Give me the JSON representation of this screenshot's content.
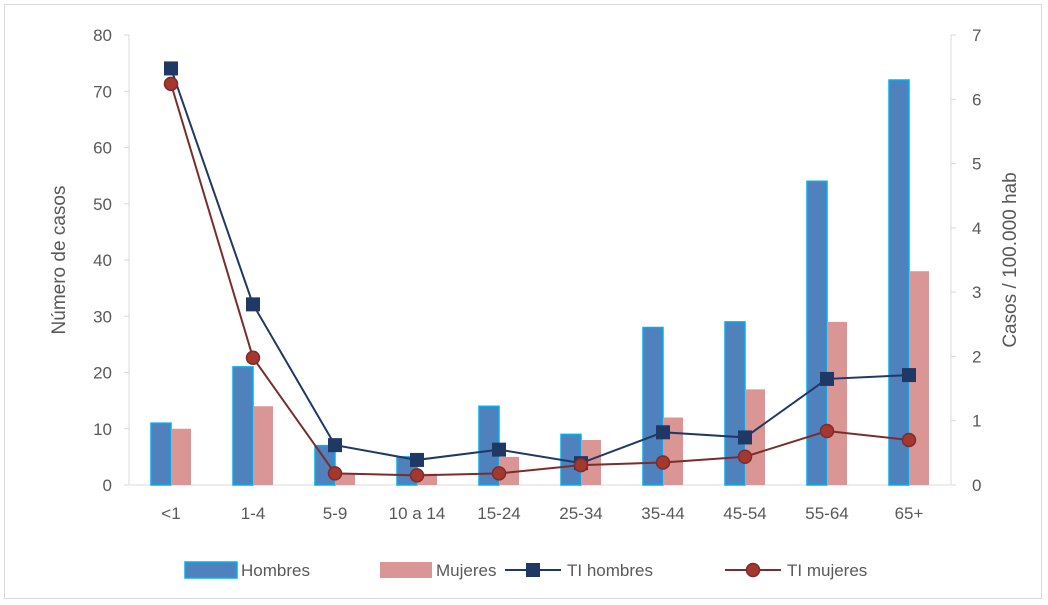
{
  "chart_data": {
    "type": "bar+line",
    "categories": [
      "<1",
      "1-4",
      "5-9",
      "10 a 14",
      "15-24",
      "25-34",
      "35-44",
      "45-54",
      "55-64",
      "65+"
    ],
    "ylabel": "Número de casos",
    "y2label": "Casos / 100.000 hab",
    "ylim": [
      0,
      80
    ],
    "y_ticks": [
      "0",
      "10",
      "20",
      "30",
      "40",
      "50",
      "60",
      "70",
      "80"
    ],
    "y2lim": [
      0,
      7
    ],
    "y2_ticks": [
      "0",
      "1",
      "2",
      "3",
      "4",
      "5",
      "6",
      "7"
    ],
    "grid": false,
    "legend_position": "bottom",
    "bar_series": [
      {
        "name": "Hombres",
        "color": "#4f81bd",
        "edge_color": "#00b0f0",
        "values": [
          11,
          21,
          7,
          5,
          14,
          9,
          28,
          29,
          54,
          72
        ]
      },
      {
        "name": "Mujeres",
        "color": "#da9694",
        "values": [
          10,
          14,
          2,
          2,
          5,
          8,
          12,
          17,
          29,
          38
        ]
      }
    ],
    "line_series": [
      {
        "name": "TI hombres",
        "color": "#1f3864",
        "marker": "square",
        "axis": "right",
        "values": [
          6.48,
          2.81,
          0.62,
          0.39,
          0.55,
          0.34,
          0.82,
          0.74,
          1.65,
          1.71
        ]
      },
      {
        "name": "TI mujeres",
        "color": "#7b2c2c",
        "marker_fill": "#a5382e",
        "marker": "circle",
        "axis": "right",
        "values": [
          6.24,
          1.98,
          0.18,
          0.15,
          0.18,
          0.31,
          0.35,
          0.44,
          0.84,
          0.7
        ]
      }
    ]
  }
}
